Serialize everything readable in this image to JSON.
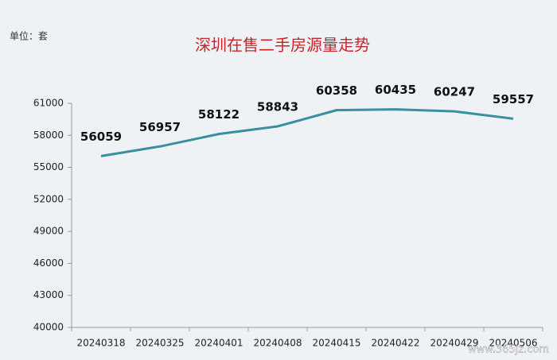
{
  "chart_data": {
    "type": "line",
    "title": "深圳在售二手房源量走势",
    "unit_label": "单位：套",
    "watermark": "www.365jz.com",
    "categories": [
      "20240318",
      "20240325",
      "20240401",
      "20240408",
      "20240415",
      "20240422",
      "20240429",
      "20240506"
    ],
    "series": [
      {
        "name": "在售二手房源量",
        "color": "#3a8f9f",
        "values": [
          56059,
          56957,
          58122,
          58843,
          60358,
          60435,
          60247,
          59557
        ]
      }
    ],
    "ylim": [
      40000,
      61000
    ],
    "yticks": [
      40000,
      43000,
      46000,
      49000,
      52000,
      55000,
      58000,
      61000
    ],
    "grid": false,
    "legend": false
  }
}
